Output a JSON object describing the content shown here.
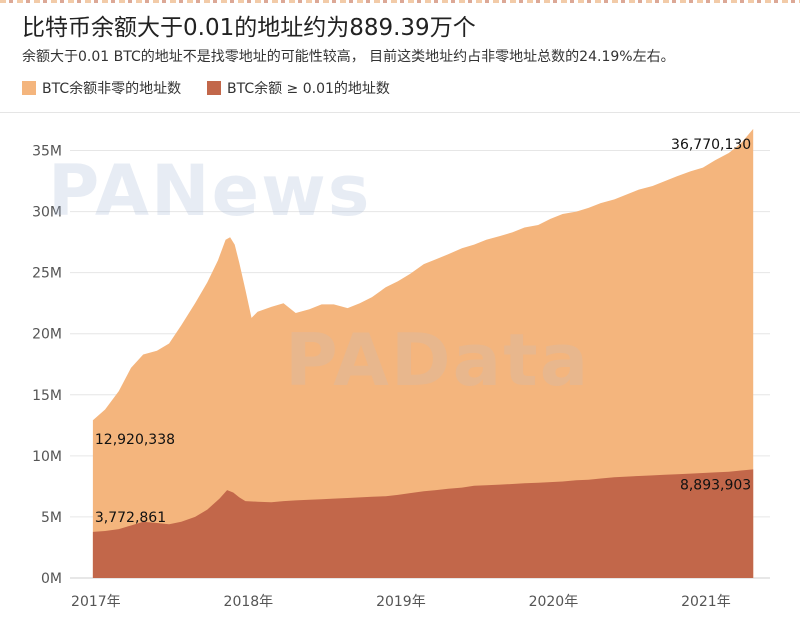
{
  "title": "比特币余额大于0.01的地址约为889.39万个",
  "subtitle": "余额大于0.01 BTC的地址不是找零地址的可能性较高， 目前这类地址约占非零地址总数的24.19%左右。",
  "legend": [
    {
      "label": "BTC余额非零的地址数",
      "color": "#f4b57d"
    },
    {
      "label": "BTC余额 ≥ 0.01的地址数",
      "color": "#c2674a"
    }
  ],
  "watermarks": [
    "PANews",
    "PAData"
  ],
  "chart_data": {
    "type": "area",
    "x_ticks": [
      2017,
      2018,
      2019,
      2020,
      2021
    ],
    "x_tick_labels": [
      "2017年",
      "2018年",
      "2019年",
      "2020年",
      "2021年"
    ],
    "y_ticks": [
      0,
      5000000,
      10000000,
      15000000,
      20000000,
      25000000,
      30000000,
      35000000
    ],
    "y_tick_labels": [
      "0M",
      "5M",
      "10M",
      "15M",
      "20M",
      "25M",
      "30M",
      "35M"
    ],
    "ylim": [
      0,
      37500000
    ],
    "xlim": [
      2016.85,
      2021.44
    ],
    "grid": true,
    "series": [
      {
        "name": "BTC余额非零的地址数",
        "color": "#f4b57d",
        "points": [
          [
            2017.0,
            12920338
          ],
          [
            2017.08,
            13800000
          ],
          [
            2017.17,
            15300000
          ],
          [
            2017.25,
            17200000
          ],
          [
            2017.33,
            18300000
          ],
          [
            2017.42,
            18600000
          ],
          [
            2017.5,
            19200000
          ],
          [
            2017.58,
            20700000
          ],
          [
            2017.67,
            22500000
          ],
          [
            2017.75,
            24200000
          ],
          [
            2017.82,
            26000000
          ],
          [
            2017.87,
            27700000
          ],
          [
            2017.9,
            27900000
          ],
          [
            2017.93,
            27300000
          ],
          [
            2017.96,
            25800000
          ],
          [
            2018.0,
            23600000
          ],
          [
            2018.04,
            21300000
          ],
          [
            2018.08,
            21800000
          ],
          [
            2018.17,
            22200000
          ],
          [
            2018.25,
            22500000
          ],
          [
            2018.33,
            21700000
          ],
          [
            2018.42,
            22000000
          ],
          [
            2018.5,
            22400000
          ],
          [
            2018.58,
            22400000
          ],
          [
            2018.67,
            22100000
          ],
          [
            2018.75,
            22500000
          ],
          [
            2018.83,
            23000000
          ],
          [
            2018.92,
            23800000
          ],
          [
            2019.0,
            24300000
          ],
          [
            2019.08,
            24900000
          ],
          [
            2019.17,
            25700000
          ],
          [
            2019.25,
            26100000
          ],
          [
            2019.33,
            26500000
          ],
          [
            2019.42,
            27000000
          ],
          [
            2019.5,
            27300000
          ],
          [
            2019.58,
            27700000
          ],
          [
            2019.67,
            28000000
          ],
          [
            2019.75,
            28300000
          ],
          [
            2019.83,
            28700000
          ],
          [
            2019.92,
            28900000
          ],
          [
            2020.0,
            29400000
          ],
          [
            2020.08,
            29800000
          ],
          [
            2020.17,
            30000000
          ],
          [
            2020.25,
            30300000
          ],
          [
            2020.33,
            30700000
          ],
          [
            2020.42,
            31000000
          ],
          [
            2020.5,
            31400000
          ],
          [
            2020.58,
            31800000
          ],
          [
            2020.67,
            32100000
          ],
          [
            2020.75,
            32500000
          ],
          [
            2020.83,
            32900000
          ],
          [
            2020.92,
            33300000
          ],
          [
            2021.0,
            33600000
          ],
          [
            2021.08,
            34200000
          ],
          [
            2021.17,
            34800000
          ],
          [
            2021.25,
            35600000
          ],
          [
            2021.33,
            36770130
          ]
        ]
      },
      {
        "name": "BTC余额 ≥ 0.01的地址数",
        "color": "#c2674a",
        "points": [
          [
            2017.0,
            3772861
          ],
          [
            2017.08,
            3850000
          ],
          [
            2017.17,
            4000000
          ],
          [
            2017.25,
            4300000
          ],
          [
            2017.33,
            4600000
          ],
          [
            2017.42,
            4500000
          ],
          [
            2017.5,
            4400000
          ],
          [
            2017.58,
            4600000
          ],
          [
            2017.67,
            5000000
          ],
          [
            2017.75,
            5600000
          ],
          [
            2017.83,
            6500000
          ],
          [
            2017.88,
            7200000
          ],
          [
            2017.92,
            7000000
          ],
          [
            2017.96,
            6600000
          ],
          [
            2018.0,
            6300000
          ],
          [
            2018.08,
            6250000
          ],
          [
            2018.17,
            6200000
          ],
          [
            2018.25,
            6300000
          ],
          [
            2018.33,
            6350000
          ],
          [
            2018.42,
            6400000
          ],
          [
            2018.5,
            6450000
          ],
          [
            2018.58,
            6500000
          ],
          [
            2018.67,
            6550000
          ],
          [
            2018.75,
            6600000
          ],
          [
            2018.83,
            6650000
          ],
          [
            2018.92,
            6700000
          ],
          [
            2019.0,
            6800000
          ],
          [
            2019.08,
            6950000
          ],
          [
            2019.17,
            7100000
          ],
          [
            2019.25,
            7200000
          ],
          [
            2019.33,
            7300000
          ],
          [
            2019.42,
            7400000
          ],
          [
            2019.5,
            7550000
          ],
          [
            2019.58,
            7600000
          ],
          [
            2019.67,
            7650000
          ],
          [
            2019.75,
            7700000
          ],
          [
            2019.83,
            7750000
          ],
          [
            2019.92,
            7800000
          ],
          [
            2020.0,
            7850000
          ],
          [
            2020.08,
            7900000
          ],
          [
            2020.17,
            8000000
          ],
          [
            2020.25,
            8050000
          ],
          [
            2020.33,
            8150000
          ],
          [
            2020.42,
            8250000
          ],
          [
            2020.5,
            8300000
          ],
          [
            2020.58,
            8350000
          ],
          [
            2020.67,
            8400000
          ],
          [
            2020.75,
            8450000
          ],
          [
            2020.83,
            8500000
          ],
          [
            2020.92,
            8550000
          ],
          [
            2021.0,
            8600000
          ],
          [
            2021.08,
            8650000
          ],
          [
            2021.17,
            8700000
          ],
          [
            2021.25,
            8800000
          ],
          [
            2021.33,
            8893903
          ]
        ]
      }
    ],
    "annotations": [
      {
        "text": "12,920,338",
        "x": 2017.0,
        "y": 12920338,
        "anchor": "start-below"
      },
      {
        "text": "3,772,861",
        "x": 2017.0,
        "y": 3772861,
        "anchor": "start-above"
      },
      {
        "text": "36,770,130",
        "x": 2021.33,
        "y": 36770130,
        "anchor": "end-below"
      },
      {
        "text": "8,893,903",
        "x": 2021.33,
        "y": 8893903,
        "anchor": "end-below"
      }
    ]
  }
}
